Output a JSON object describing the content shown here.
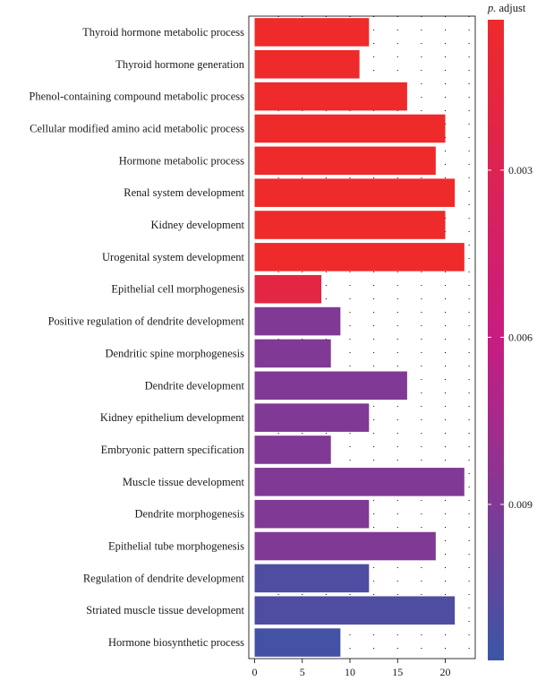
{
  "chart_data": {
    "type": "bar",
    "orientation": "horizontal",
    "title": "",
    "xlabel": "",
    "ylabel": "",
    "xlim": [
      0,
      22.5
    ],
    "xticks": [
      0,
      5,
      10,
      15,
      20
    ],
    "categories": [
      "Thyroid hormone metabolic process",
      "Thyroid hormone generation",
      "Phenol-containing compound metabolic process",
      "Cellular modified amino acid metabolic process",
      "Hormone metabolic process",
      "Renal system development",
      "Kidney development",
      "Urogenital system development",
      "Epithelial cell morphogenesis",
      "Positive regulation of dendrite development",
      "Dendritic spine morphogenesis",
      "Dendrite development",
      "Kidney epithelium development",
      "Embryonic pattern specification",
      "Muscle tissue development",
      "Dendrite morphogenesis",
      "Epithelial tube morphogenesis",
      "Regulation of dendrite development",
      "Striated muscle tissue development",
      "Hormone biosynthetic process"
    ],
    "values": [
      12,
      11,
      16,
      20,
      19,
      21,
      20,
      22,
      7,
      9,
      8,
      16,
      12,
      8,
      22,
      12,
      19,
      12,
      21,
      9
    ],
    "p_adjust": [
      0.0003,
      0.0003,
      0.0003,
      0.0003,
      0.0003,
      0.0003,
      0.0003,
      0.0003,
      0.002,
      0.009,
      0.009,
      0.009,
      0.009,
      0.009,
      0.009,
      0.009,
      0.009,
      0.011,
      0.011,
      0.0115
    ],
    "legend": {
      "title_prefix": "p.",
      "title_suffix": " adjust",
      "position": "right",
      "range": [
        0.0003,
        0.0118
      ],
      "ticks": [
        0.003,
        0.006,
        0.009
      ],
      "tick_labels": [
        "0.003",
        "0.006",
        "0.009"
      ],
      "colors": {
        "low": "#ee2a2a",
        "mid": "#c81c82",
        "high": "#3c55a6"
      }
    }
  }
}
